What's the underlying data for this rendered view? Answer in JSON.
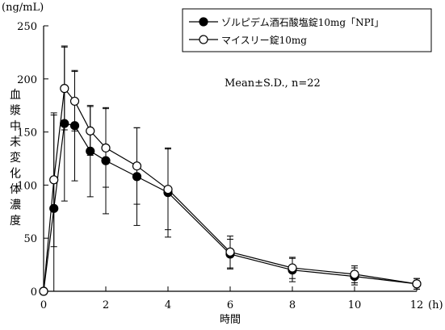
{
  "chart_data": {
    "type": "line",
    "xlabel": "時間",
    "x_unit": "(h)",
    "ylabel": "血漿中未変化体濃度",
    "y_unit": "(ng/mL)",
    "annotation": "Mean±S.D., n=22",
    "xlim": [
      0,
      12
    ],
    "ylim": [
      0,
      250
    ],
    "x_ticks": [
      0,
      2,
      4,
      6,
      8,
      10,
      12
    ],
    "y_ticks": [
      0,
      50,
      100,
      150,
      200,
      250
    ],
    "legend_position": "top-right",
    "grid": false,
    "x": [
      0,
      0.33,
      0.67,
      1,
      1.5,
      2,
      3,
      4,
      6,
      8,
      10,
      12
    ],
    "series": [
      {
        "name": "ゾルピデム酒石酸塩錠10mg「NPI」",
        "marker": "filled-circle",
        "color": "#000000",
        "values": [
          0,
          78,
          158,
          156,
          132,
          123,
          108,
          93,
          35,
          20,
          14,
          7
        ],
        "sd": [
          0,
          88,
          73,
          52,
          43,
          50,
          46,
          42,
          14,
          11,
          8,
          5
        ]
      },
      {
        "name": "マイスリー錠10mg",
        "marker": "open-circle",
        "color": "#000000",
        "values": [
          0,
          105,
          191,
          179,
          151,
          135,
          118,
          96,
          37,
          22,
          16,
          7
        ],
        "sd": [
          0,
          63,
          39,
          28,
          23,
          37,
          36,
          38,
          15,
          10,
          8,
          5
        ]
      }
    ]
  }
}
